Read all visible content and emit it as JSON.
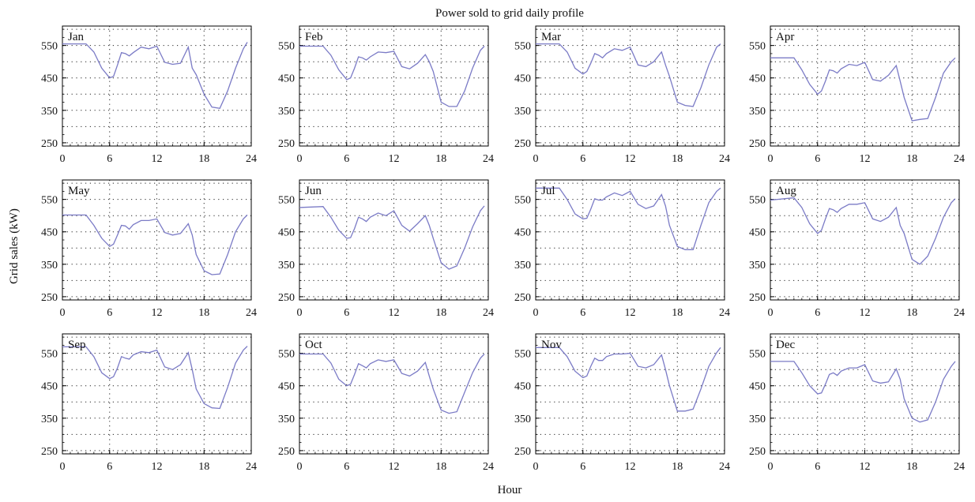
{
  "figure": {
    "title": "Power sold to grid daily profile",
    "xlabel": "Hour",
    "ylabel": "Grid sales (kW)"
  },
  "style": {
    "line_color": "#7b7bc6",
    "axis_color": "#000000",
    "grid_color": "#222222"
  },
  "chart_data": [
    {
      "type": "line",
      "title": "Jan",
      "xlim": [
        0,
        24
      ],
      "ylim": [
        240,
        610
      ],
      "grid": true,
      "xticks": [
        0,
        6,
        12,
        18,
        24
      ],
      "yticks": [
        250,
        350,
        450,
        550
      ],
      "x": [
        0,
        3,
        4,
        5,
        6,
        6.5,
        7,
        7.5,
        8,
        8.5,
        9,
        10,
        11,
        12,
        13,
        14,
        15,
        16,
        16.5,
        17,
        18,
        19,
        20,
        21,
        22,
        23,
        23.5
      ],
      "y": [
        555,
        555,
        530,
        480,
        450,
        455,
        490,
        528,
        525,
        518,
        528,
        545,
        540,
        548,
        498,
        492,
        495,
        545,
        480,
        460,
        400,
        360,
        356,
        410,
        480,
        540,
        560
      ]
    },
    {
      "type": "line",
      "title": "Feb",
      "xlim": [
        0,
        24
      ],
      "ylim": [
        240,
        610
      ],
      "grid": true,
      "xticks": [
        0,
        6,
        12,
        18,
        24
      ],
      "yticks": [
        250,
        350,
        450,
        550
      ],
      "x": [
        0,
        3,
        4,
        5,
        6,
        6.5,
        7,
        7.5,
        8,
        8.5,
        9,
        10,
        11,
        12,
        13,
        14,
        15,
        16,
        16.5,
        17,
        18,
        19,
        20,
        21,
        22,
        23,
        23.5
      ],
      "y": [
        548,
        548,
        520,
        475,
        445,
        450,
        480,
        515,
        512,
        505,
        515,
        530,
        528,
        532,
        485,
        478,
        495,
        522,
        500,
        470,
        375,
        362,
        362,
        410,
        480,
        535,
        548
      ]
    },
    {
      "type": "line",
      "title": "Mar",
      "xlim": [
        0,
        24
      ],
      "ylim": [
        240,
        610
      ],
      "grid": true,
      "xticks": [
        0,
        6,
        12,
        18,
        24
      ],
      "yticks": [
        250,
        350,
        450,
        550
      ],
      "x": [
        0,
        3,
        4,
        5,
        6,
        6.5,
        7,
        7.5,
        8,
        8.5,
        9,
        10,
        11,
        12,
        13,
        14,
        15,
        16,
        16.5,
        17,
        18,
        19,
        20,
        21,
        22,
        23,
        23.5
      ],
      "y": [
        555,
        555,
        530,
        480,
        462,
        470,
        495,
        525,
        520,
        512,
        525,
        540,
        535,
        545,
        490,
        485,
        500,
        530,
        490,
        455,
        375,
        365,
        362,
        420,
        490,
        545,
        555
      ]
    },
    {
      "type": "line",
      "title": "Apr",
      "xlim": [
        0,
        24
      ],
      "ylim": [
        240,
        610
      ],
      "grid": true,
      "xticks": [
        0,
        6,
        12,
        18,
        24
      ],
      "yticks": [
        250,
        350,
        450,
        550
      ],
      "x": [
        0,
        3,
        4,
        5,
        6,
        6.5,
        7,
        7.5,
        8,
        8.5,
        9,
        10,
        11,
        12,
        13,
        14,
        15,
        16,
        16.5,
        17,
        18,
        19,
        20,
        21,
        22,
        23,
        23.5
      ],
      "y": [
        512,
        512,
        475,
        430,
        400,
        410,
        440,
        475,
        472,
        465,
        478,
        492,
        488,
        498,
        445,
        440,
        458,
        488,
        440,
        390,
        318,
        322,
        325,
        390,
        465,
        500,
        512
      ]
    },
    {
      "type": "line",
      "title": "May",
      "xlim": [
        0,
        24
      ],
      "ylim": [
        240,
        610
      ],
      "grid": true,
      "xticks": [
        0,
        6,
        12,
        18,
        24
      ],
      "yticks": [
        250,
        350,
        450,
        550
      ],
      "x": [
        0,
        3,
        4,
        5,
        6,
        6.5,
        7,
        7.5,
        8,
        8.5,
        9,
        10,
        11,
        12,
        13,
        14,
        15,
        16,
        16.5,
        17,
        18,
        19,
        20,
        21,
        22,
        23,
        23.5
      ],
      "y": [
        502,
        502,
        470,
        430,
        405,
        412,
        440,
        470,
        468,
        458,
        472,
        485,
        485,
        490,
        448,
        440,
        445,
        475,
        440,
        380,
        330,
        318,
        320,
        380,
        450,
        490,
        502
      ]
    },
    {
      "type": "line",
      "title": "Jun",
      "xlim": [
        0,
        24
      ],
      "ylim": [
        240,
        610
      ],
      "grid": true,
      "xticks": [
        0,
        6,
        12,
        18,
        24
      ],
      "yticks": [
        250,
        350,
        450,
        550
      ],
      "x": [
        0,
        3,
        4,
        5,
        6,
        6.5,
        7,
        7.5,
        8,
        8.5,
        9,
        10,
        11,
        12,
        13,
        14,
        15,
        16,
        16.5,
        17,
        18,
        19,
        20,
        21,
        22,
        23,
        23.5
      ],
      "y": [
        525,
        528,
        495,
        455,
        430,
        432,
        460,
        495,
        490,
        482,
        495,
        508,
        500,
        515,
        470,
        452,
        475,
        500,
        470,
        430,
        355,
        335,
        345,
        400,
        465,
        515,
        530
      ]
    },
    {
      "type": "line",
      "title": "Jul",
      "xlim": [
        0,
        24
      ],
      "ylim": [
        240,
        610
      ],
      "grid": true,
      "xticks": [
        0,
        6,
        12,
        18,
        24
      ],
      "yticks": [
        250,
        350,
        450,
        550
      ],
      "x": [
        0,
        3,
        4,
        5,
        6,
        6.5,
        7,
        7.5,
        8,
        8.5,
        9,
        10,
        11,
        12,
        13,
        14,
        15,
        16,
        16.5,
        17,
        18,
        19,
        20,
        21,
        22,
        23,
        23.5
      ],
      "y": [
        585,
        585,
        550,
        505,
        490,
        492,
        520,
        552,
        548,
        548,
        558,
        570,
        562,
        575,
        535,
        522,
        530,
        565,
        530,
        470,
        405,
        395,
        395,
        470,
        540,
        575,
        585
      ]
    },
    {
      "type": "line",
      "title": "Aug",
      "xlim": [
        0,
        24
      ],
      "ylim": [
        240,
        610
      ],
      "grid": true,
      "xticks": [
        0,
        6,
        12,
        18,
        24
      ],
      "yticks": [
        250,
        350,
        450,
        550
      ],
      "x": [
        0,
        3,
        4,
        5,
        6,
        6.5,
        7,
        7.5,
        8,
        8.5,
        9,
        10,
        11,
        12,
        13,
        14,
        15,
        16,
        16.5,
        17,
        18,
        19,
        20,
        21,
        22,
        23,
        23.5
      ],
      "y": [
        548,
        555,
        525,
        475,
        445,
        455,
        490,
        522,
        518,
        510,
        522,
        535,
        535,
        540,
        490,
        482,
        495,
        525,
        470,
        445,
        365,
        350,
        375,
        430,
        495,
        540,
        552
      ]
    },
    {
      "type": "line",
      "title": "Sep",
      "xlim": [
        0,
        24
      ],
      "ylim": [
        240,
        610
      ],
      "grid": true,
      "xticks": [
        0,
        6,
        12,
        18,
        24
      ],
      "yticks": [
        250,
        350,
        450,
        550
      ],
      "x": [
        0,
        3,
        4,
        5,
        6,
        6.5,
        7,
        7.5,
        8,
        8.5,
        9,
        10,
        11,
        12,
        13,
        14,
        15,
        16,
        16.5,
        17,
        18,
        19,
        20,
        21,
        22,
        23,
        23.5
      ],
      "y": [
        570,
        570,
        540,
        490,
        472,
        478,
        505,
        540,
        535,
        532,
        545,
        555,
        552,
        560,
        508,
        500,
        515,
        552,
        500,
        440,
        395,
        382,
        380,
        445,
        520,
        560,
        572
      ]
    },
    {
      "type": "line",
      "title": "Oct",
      "xlim": [
        0,
        24
      ],
      "ylim": [
        240,
        610
      ],
      "grid": true,
      "xticks": [
        0,
        6,
        12,
        18,
        24
      ],
      "yticks": [
        250,
        350,
        450,
        550
      ],
      "x": [
        0,
        3,
        4,
        5,
        6,
        6.5,
        7,
        7.5,
        8,
        8.5,
        9,
        10,
        11,
        12,
        13,
        14,
        15,
        16,
        16.5,
        17,
        18,
        19,
        20,
        21,
        22,
        23,
        23.5
      ],
      "y": [
        548,
        548,
        520,
        470,
        450,
        455,
        485,
        518,
        512,
        505,
        518,
        530,
        525,
        530,
        488,
        480,
        495,
        522,
        480,
        440,
        375,
        365,
        370,
        430,
        490,
        535,
        548
      ]
    },
    {
      "type": "line",
      "title": "Nov",
      "xlim": [
        0,
        24
      ],
      "ylim": [
        240,
        610
      ],
      "grid": true,
      "xticks": [
        0,
        6,
        12,
        18,
        24
      ],
      "yticks": [
        250,
        350,
        450,
        550
      ],
      "x": [
        0,
        3,
        4,
        5,
        6,
        6.5,
        7,
        7.5,
        8,
        8.5,
        9,
        10,
        11,
        12,
        13,
        14,
        15,
        16,
        16.5,
        17,
        18,
        19,
        20,
        21,
        22,
        23,
        23.5
      ],
      "y": [
        568,
        568,
        540,
        495,
        475,
        480,
        510,
        535,
        528,
        528,
        540,
        548,
        548,
        550,
        510,
        505,
        515,
        545,
        500,
        450,
        372,
        372,
        378,
        440,
        510,
        552,
        568
      ]
    },
    {
      "type": "line",
      "title": "Dec",
      "xlim": [
        0,
        24
      ],
      "ylim": [
        240,
        610
      ],
      "grid": true,
      "xticks": [
        0,
        6,
        12,
        18,
        24
      ],
      "yticks": [
        250,
        350,
        450,
        550
      ],
      "x": [
        0,
        3,
        4,
        5,
        6,
        6.5,
        7,
        7.5,
        8,
        8.5,
        9,
        10,
        11,
        12,
        13,
        14,
        15,
        16,
        16.5,
        17,
        18,
        19,
        20,
        21,
        22,
        23,
        23.5
      ],
      "y": [
        525,
        525,
        490,
        450,
        425,
        428,
        455,
        485,
        490,
        482,
        495,
        505,
        505,
        515,
        465,
        458,
        462,
        502,
        470,
        410,
        350,
        338,
        345,
        400,
        470,
        510,
        525
      ]
    }
  ]
}
